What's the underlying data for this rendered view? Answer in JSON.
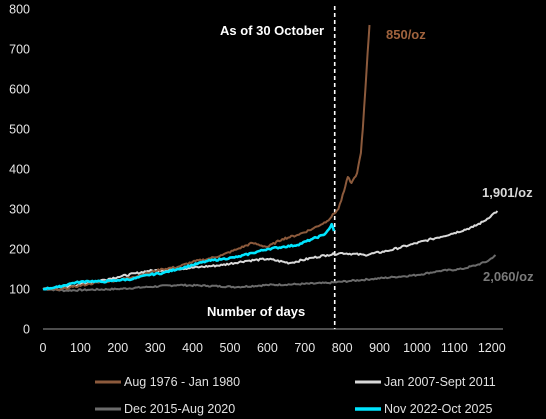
{
  "chart_data": {
    "type": "line",
    "title": "",
    "xlabel": "",
    "ylabel": "",
    "xlim": [
      0,
      1230
    ],
    "ylim": [
      0,
      800
    ],
    "xticks": [
      0,
      100,
      200,
      300,
      400,
      500,
      600,
      700,
      800,
      900,
      1000,
      1100,
      1200
    ],
    "yticks": [
      0,
      100,
      200,
      300,
      400,
      500,
      600,
      700,
      800
    ],
    "grid": false,
    "legend_position": "bottom",
    "annotations": {
      "as_of": "As of 30 October",
      "as_of_x": 780,
      "x_axis_note": "Number of days"
    },
    "series": [
      {
        "name": "Aug 1976 - Jan 1980",
        "color": "#8c5a3c",
        "end_label": "850/oz",
        "points": [
          [
            0,
            100
          ],
          [
            40,
            98
          ],
          [
            80,
            105
          ],
          [
            120,
            112
          ],
          [
            160,
            118
          ],
          [
            200,
            122
          ],
          [
            240,
            130
          ],
          [
            280,
            140
          ],
          [
            320,
            150
          ],
          [
            360,
            155
          ],
          [
            400,
            168
          ],
          [
            440,
            175
          ],
          [
            480,
            185
          ],
          [
            520,
            200
          ],
          [
            560,
            215
          ],
          [
            600,
            205
          ],
          [
            640,
            225
          ],
          [
            680,
            235
          ],
          [
            720,
            250
          ],
          [
            760,
            270
          ],
          [
            790,
            300
          ],
          [
            805,
            345
          ],
          [
            815,
            380
          ],
          [
            825,
            365
          ],
          [
            840,
            390
          ],
          [
            850,
            440
          ],
          [
            855,
            500
          ],
          [
            862,
            600
          ],
          [
            868,
            690
          ],
          [
            873,
            760
          ]
        ]
      },
      {
        "name": "Jan 2007-Sept  2011",
        "color": "#d9d9d9",
        "end_label": "1,901/oz",
        "points": [
          [
            0,
            100
          ],
          [
            60,
            105
          ],
          [
            120,
            115
          ],
          [
            200,
            130
          ],
          [
            280,
            145
          ],
          [
            360,
            150
          ],
          [
            420,
            155
          ],
          [
            480,
            160
          ],
          [
            540,
            170
          ],
          [
            600,
            175
          ],
          [
            660,
            165
          ],
          [
            720,
            178
          ],
          [
            760,
            185
          ],
          [
            800,
            190
          ],
          [
            860,
            185
          ],
          [
            920,
            195
          ],
          [
            980,
            210
          ],
          [
            1040,
            225
          ],
          [
            1100,
            240
          ],
          [
            1150,
            255
          ],
          [
            1180,
            270
          ],
          [
            1200,
            285
          ],
          [
            1215,
            295
          ]
        ]
      },
      {
        "name": "Dec 2015-Aug 2020",
        "color": "#6b6b6b",
        "end_label": "2,060/oz",
        "points": [
          [
            0,
            100
          ],
          [
            60,
            96
          ],
          [
            120,
            98
          ],
          [
            200,
            100
          ],
          [
            280,
            105
          ],
          [
            360,
            110
          ],
          [
            440,
            108
          ],
          [
            520,
            105
          ],
          [
            600,
            110
          ],
          [
            680,
            112
          ],
          [
            760,
            115
          ],
          [
            820,
            120
          ],
          [
            880,
            125
          ],
          [
            940,
            130
          ],
          [
            1000,
            135
          ],
          [
            1060,
            145
          ],
          [
            1120,
            150
          ],
          [
            1160,
            160
          ],
          [
            1190,
            170
          ],
          [
            1210,
            185
          ]
        ]
      },
      {
        "name": "Nov 2022-Oct 2025",
        "color": "#00e5ff",
        "end_label": "",
        "points": [
          [
            0,
            100
          ],
          [
            40,
            105
          ],
          [
            80,
            115
          ],
          [
            120,
            120
          ],
          [
            160,
            118
          ],
          [
            200,
            122
          ],
          [
            240,
            125
          ],
          [
            280,
            135
          ],
          [
            320,
            140
          ],
          [
            360,
            150
          ],
          [
            400,
            160
          ],
          [
            440,
            170
          ],
          [
            480,
            175
          ],
          [
            520,
            180
          ],
          [
            560,
            190
          ],
          [
            600,
            200
          ],
          [
            640,
            205
          ],
          [
            680,
            210
          ],
          [
            720,
            225
          ],
          [
            750,
            235
          ],
          [
            765,
            250
          ],
          [
            772,
            262
          ],
          [
            778,
            245
          ]
        ]
      }
    ]
  }
}
